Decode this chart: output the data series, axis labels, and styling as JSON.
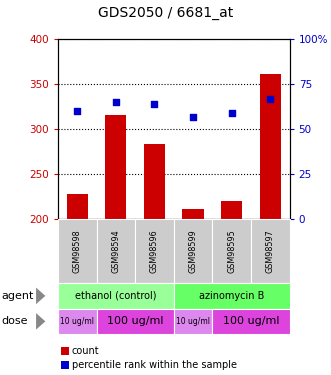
{
  "title": "GDS2050 / 6681_at",
  "samples": [
    "GSM98598",
    "GSM98594",
    "GSM98596",
    "GSM98599",
    "GSM98595",
    "GSM98597"
  ],
  "counts": [
    228,
    316,
    284,
    212,
    220,
    362
  ],
  "percentiles": [
    60,
    65,
    64,
    57,
    59,
    67
  ],
  "ylim_left": [
    200,
    400
  ],
  "ylim_right": [
    0,
    100
  ],
  "yticks_left": [
    200,
    250,
    300,
    350,
    400
  ],
  "yticks_right": [
    0,
    25,
    50,
    75,
    100
  ],
  "ytick_labels_right": [
    "0",
    "25",
    "50",
    "75",
    "100%"
  ],
  "bar_color": "#cc0000",
  "dot_color": "#0000cc",
  "agent_groups": [
    {
      "label": "ethanol (control)",
      "color": "#99ff99",
      "span": [
        0,
        3
      ]
    },
    {
      "label": "azinomycin B",
      "color": "#66ff66",
      "span": [
        3,
        6
      ]
    }
  ],
  "dose_groups": [
    {
      "label": "10 ug/ml",
      "color": "#ee88ee",
      "span": [
        0,
        1
      ],
      "fontsize": 5.5
    },
    {
      "label": "100 ug/ml",
      "color": "#ee55ee",
      "span": [
        1,
        3
      ],
      "fontsize": 8
    },
    {
      "label": "10 ug/ml",
      "color": "#ee88ee",
      "span": [
        3,
        4
      ],
      "fontsize": 5.5
    },
    {
      "label": "100 ug/ml",
      "color": "#ee55ee",
      "span": [
        4,
        6
      ],
      "fontsize": 8
    }
  ],
  "label_color_left": "#cc0000",
  "label_color_right": "#0000cc",
  "bar_width": 0.55,
  "sample_bg": "#cccccc",
  "agent_ethanol_color": "#aaffaa",
  "agent_azino_color": "#66ee66",
  "dose_light_color": "#dd88dd",
  "dose_dark_color": "#dd44dd"
}
